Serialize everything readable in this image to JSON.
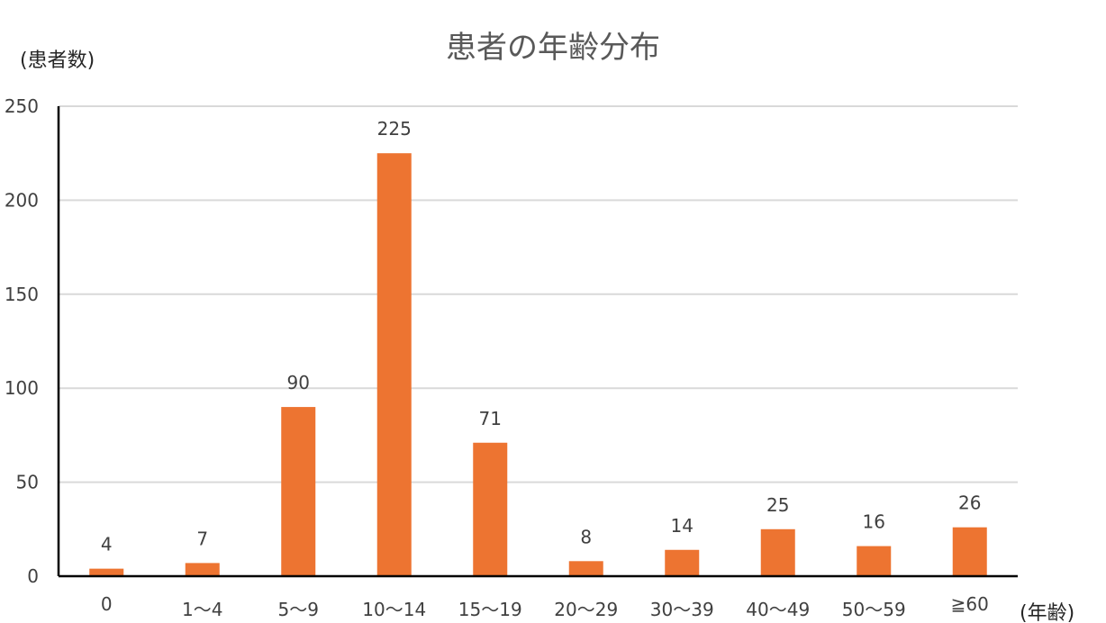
{
  "chart_data": {
    "type": "bar",
    "title": "患者の年齢分布",
    "ylabel": "(患者数)",
    "xlabel": "(年齢)",
    "categories": [
      "0",
      "1～4",
      "5～9",
      "10～14",
      "15～19",
      "20～29",
      "30～39",
      "40～49",
      "50～59",
      "≧60"
    ],
    "values": [
      4,
      7,
      90,
      225,
      71,
      8,
      14,
      25,
      16,
      26
    ],
    "ylim": [
      0,
      250
    ],
    "yticks": [
      0,
      50,
      100,
      150,
      200,
      250
    ],
    "grid": true,
    "legend": "none",
    "bar_color": "#ED7431"
  }
}
